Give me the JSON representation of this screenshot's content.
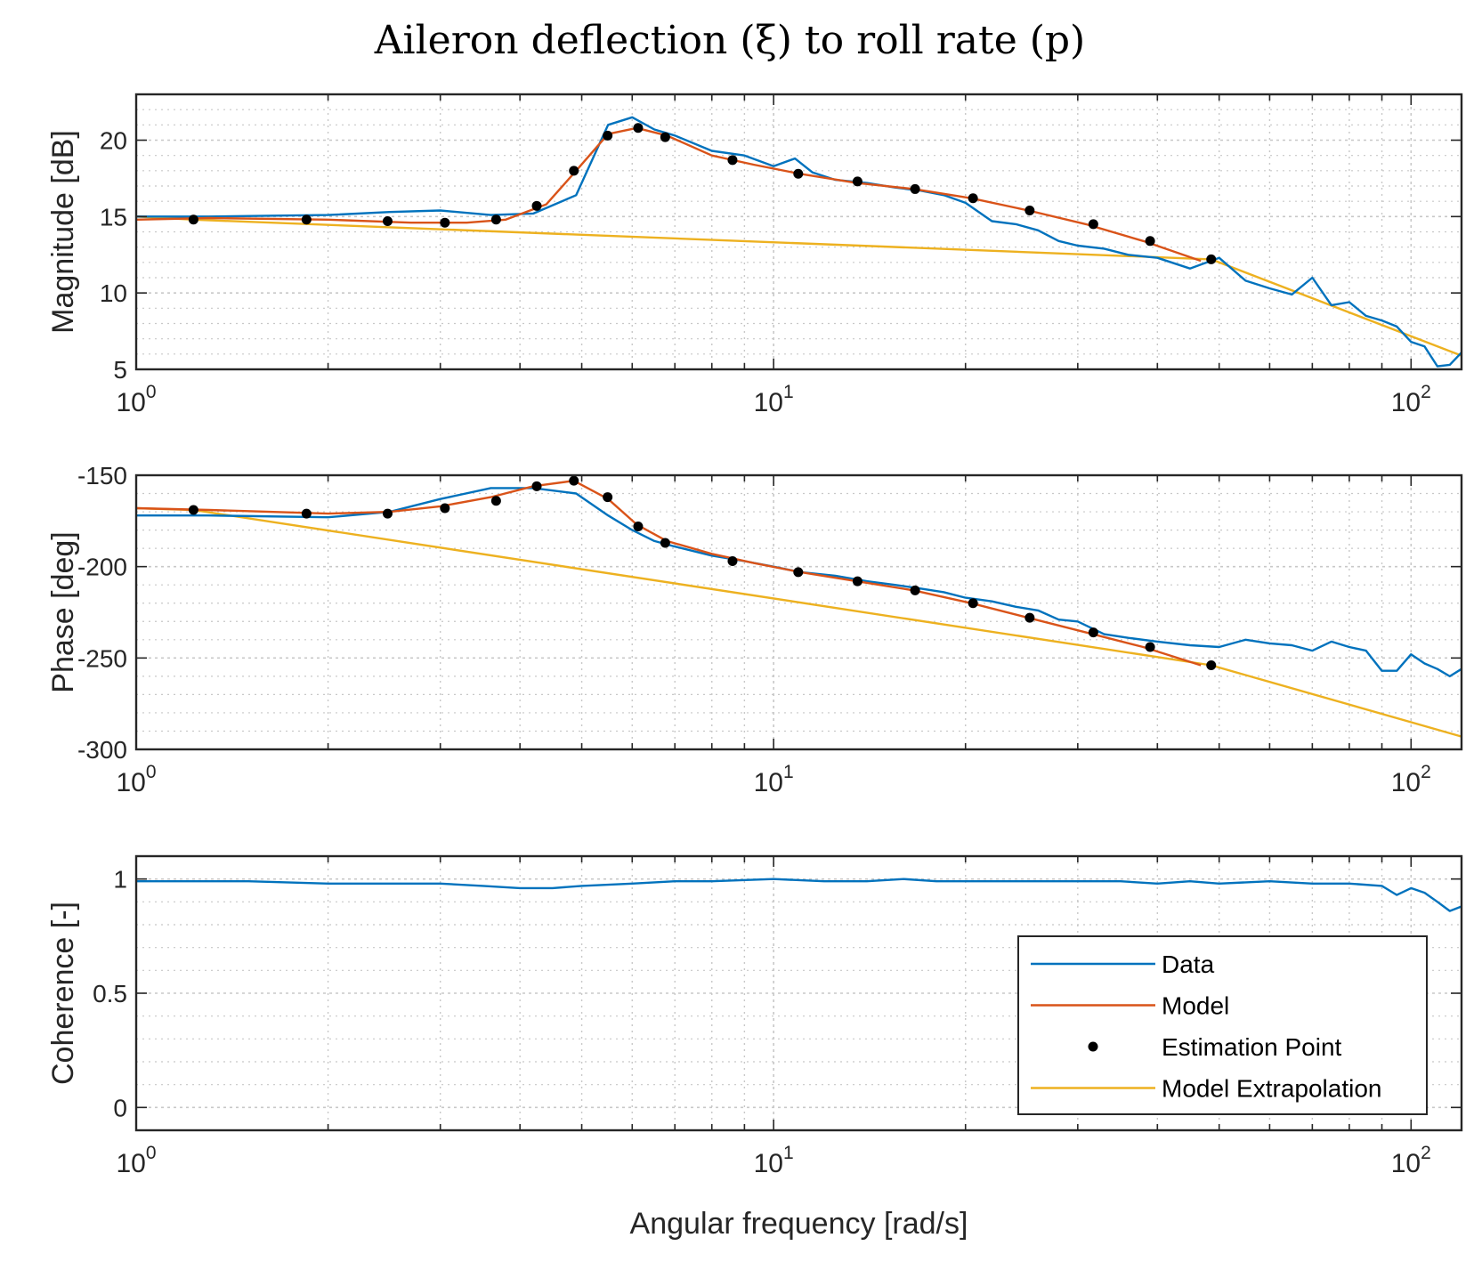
{
  "title": "Aileron deflection (ξ) to roll rate (p)",
  "colors": {
    "data": "#0072BD",
    "model": "#D95319",
    "estimation_point": "#000000",
    "extrapolation": "#EDB120",
    "grid": "#c8c8c8",
    "axis": "#262626"
  },
  "chart_data": [
    {
      "type": "line",
      "name": "magnitude",
      "xscale": "log",
      "xlim": [
        1,
        120
      ],
      "ylim": [
        5,
        23
      ],
      "ylabel": "Magnitude [dB]",
      "xlabel": "",
      "yticks": [
        5,
        10,
        15,
        20
      ],
      "ytick_labels": [
        "5",
        "10",
        "15",
        "20"
      ],
      "xtick_labels": [
        {
          "base": "10",
          "exp": "0"
        },
        {
          "base": "10",
          "exp": "1"
        },
        {
          "base": "10",
          "exp": "2"
        }
      ],
      "grid": true,
      "series": [
        {
          "name": "Data",
          "x": [
            1,
            1.3,
            2,
            2.5,
            3,
            3.6,
            4.2,
            4.9,
            5.5,
            6.0,
            6.5,
            7.0,
            8.0,
            9.0,
            10,
            10.8,
            11.5,
            12.5,
            14,
            15.5,
            17,
            18.5,
            20,
            22,
            24,
            26,
            28,
            30,
            33,
            36,
            40,
            45,
            50,
            55,
            60,
            65,
            70,
            75,
            80,
            85,
            90,
            95,
            100,
            105,
            110,
            115,
            120
          ],
          "y": [
            15.0,
            15.0,
            15.1,
            15.3,
            15.4,
            15.1,
            15.2,
            16.4,
            21.0,
            21.5,
            20.7,
            20.3,
            19.3,
            19.0,
            18.3,
            18.8,
            17.9,
            17.4,
            17.2,
            16.9,
            16.7,
            16.4,
            15.9,
            14.7,
            14.5,
            14.1,
            13.4,
            13.1,
            12.9,
            12.5,
            12.3,
            11.6,
            12.3,
            10.8,
            10.3,
            9.9,
            11.0,
            9.2,
            9.4,
            8.5,
            8.2,
            7.8,
            6.8,
            6.5,
            5.2,
            5.3,
            6.1
          ]
        },
        {
          "name": "Model",
          "x": [
            1,
            1.3,
            2,
            2.7,
            3.3,
            3.8,
            4.4,
            4.9,
            5.5,
            6.1,
            6.8,
            8.0,
            9.3,
            11,
            13.5,
            16.6,
            20.4,
            25.1,
            30.9,
            38.0,
            46.8
          ],
          "y": [
            14.8,
            14.9,
            14.8,
            14.6,
            14.6,
            14.8,
            15.8,
            18.0,
            20.4,
            20.8,
            20.3,
            19.0,
            18.4,
            17.8,
            17.2,
            16.8,
            16.2,
            15.4,
            14.5,
            13.4,
            12.1
          ]
        },
        {
          "name": "Estimation Point",
          "x": [
            1.23,
            1.85,
            2.48,
            3.05,
            3.67,
            4.25,
            4.86,
            5.49,
            6.13,
            6.76,
            8.62,
            10.93,
            13.54,
            16.67,
            20.55,
            25.22,
            31.74,
            38.96,
            48.58
          ],
          "y": [
            14.8,
            14.8,
            14.7,
            14.6,
            14.8,
            15.7,
            18.0,
            20.3,
            20.8,
            20.2,
            18.7,
            17.8,
            17.3,
            16.8,
            16.2,
            15.4,
            14.5,
            13.4,
            12.2
          ]
        },
        {
          "name": "Model Extrapolation",
          "x": [
            1,
            1.23,
            48.58,
            120
          ],
          "y": [
            15.0,
            14.8,
            12.2,
            5.9
          ]
        }
      ]
    },
    {
      "type": "line",
      "name": "phase",
      "xscale": "log",
      "xlim": [
        1,
        120
      ],
      "ylim": [
        -300,
        -150
      ],
      "ylabel": "Phase [deg]",
      "xlabel": "",
      "yticks": [
        -300,
        -250,
        -200,
        -150
      ],
      "ytick_labels": [
        "-300",
        "-250",
        "-200",
        "-150"
      ],
      "xtick_labels": [
        {
          "base": "10",
          "exp": "0"
        },
        {
          "base": "10",
          "exp": "1"
        },
        {
          "base": "10",
          "exp": "2"
        }
      ],
      "grid": true,
      "series": [
        {
          "name": "Data",
          "x": [
            1,
            1.3,
            2,
            2.5,
            3,
            3.6,
            4.2,
            4.9,
            5.5,
            6.0,
            6.5,
            7.0,
            8.0,
            9.0,
            10,
            11,
            12.5,
            14,
            15.5,
            17,
            18.5,
            20,
            22,
            24,
            26,
            28,
            30,
            33,
            36,
            40,
            45,
            50,
            55,
            60,
            65,
            70,
            75,
            80,
            85,
            90,
            95,
            100,
            105,
            110,
            115,
            120
          ],
          "y": [
            -172,
            -172,
            -173,
            -170,
            -163,
            -157,
            -157,
            -160,
            -172,
            -180,
            -186,
            -189,
            -194,
            -197,
            -200,
            -203,
            -205,
            -208,
            -210,
            -212,
            -214,
            -217,
            -219,
            -222,
            -224,
            -229,
            -230,
            -237,
            -239,
            -241,
            -243,
            -244,
            -240,
            -242,
            -243,
            -246,
            -241,
            -244,
            -246,
            -257,
            -257,
            -248,
            -253,
            -256,
            -260,
            -256
          ]
        },
        {
          "name": "Model",
          "x": [
            1,
            1.3,
            2,
            2.5,
            3,
            3.6,
            4.2,
            4.86,
            5.5,
            6.1,
            6.8,
            8.0,
            9.3,
            11,
            13.5,
            16.6,
            20.4,
            25.1,
            30.9,
            38.0,
            46.8
          ],
          "y": [
            -168,
            -169,
            -171,
            -170,
            -167,
            -162,
            -156,
            -153,
            -163,
            -177,
            -186,
            -193,
            -198,
            -203,
            -208,
            -213,
            -220,
            -228,
            -236,
            -244,
            -254
          ]
        },
        {
          "name": "Estimation Point",
          "x": [
            1.23,
            1.85,
            2.48,
            3.05,
            3.67,
            4.25,
            4.86,
            5.49,
            6.13,
            6.76,
            8.62,
            10.93,
            13.54,
            16.67,
            20.55,
            25.22,
            31.74,
            38.96,
            48.58
          ],
          "y": [
            -169,
            -171,
            -171,
            -168,
            -164,
            -156,
            -153,
            -162,
            -178,
            -187,
            -197,
            -203,
            -208,
            -213,
            -220,
            -228,
            -236,
            -244,
            -254
          ]
        },
        {
          "name": "Model Extrapolation",
          "x": [
            1,
            1.23,
            48.58,
            120
          ],
          "y": [
            -168,
            -169,
            -254,
            -293
          ]
        }
      ]
    },
    {
      "type": "line",
      "name": "coherence",
      "xscale": "log",
      "xlim": [
        1,
        120
      ],
      "ylim": [
        -0.1,
        1.1
      ],
      "ylabel": "Coherence [-]",
      "xlabel": "Angular frequency [rad/s]",
      "yticks": [
        0,
        0.5,
        1
      ],
      "ytick_labels": [
        "0",
        "0.5",
        "1"
      ],
      "xtick_labels": [
        {
          "base": "10",
          "exp": "0"
        },
        {
          "base": "10",
          "exp": "1"
        },
        {
          "base": "10",
          "exp": "2"
        }
      ],
      "grid": true,
      "series": [
        {
          "name": "Data",
          "x": [
            1,
            1.5,
            2,
            2.5,
            3,
            3.5,
            4,
            4.5,
            5,
            6,
            7,
            8,
            10,
            12,
            14,
            16,
            18,
            20,
            25,
            30,
            35,
            40,
            45,
            50,
            60,
            70,
            80,
            90,
            95,
            100,
            105,
            110,
            115,
            120
          ],
          "y": [
            0.99,
            0.99,
            0.98,
            0.98,
            0.98,
            0.97,
            0.96,
            0.96,
            0.97,
            0.98,
            0.99,
            0.99,
            1.0,
            0.99,
            0.99,
            1.0,
            0.99,
            0.99,
            0.99,
            0.99,
            0.99,
            0.98,
            0.99,
            0.98,
            0.99,
            0.98,
            0.98,
            0.97,
            0.93,
            0.96,
            0.94,
            0.9,
            0.86,
            0.88
          ]
        }
      ]
    }
  ],
  "legend": {
    "placement": "bottom-right",
    "entries": [
      "Data",
      "Model",
      "Estimation Point",
      "Model Extrapolation"
    ]
  }
}
